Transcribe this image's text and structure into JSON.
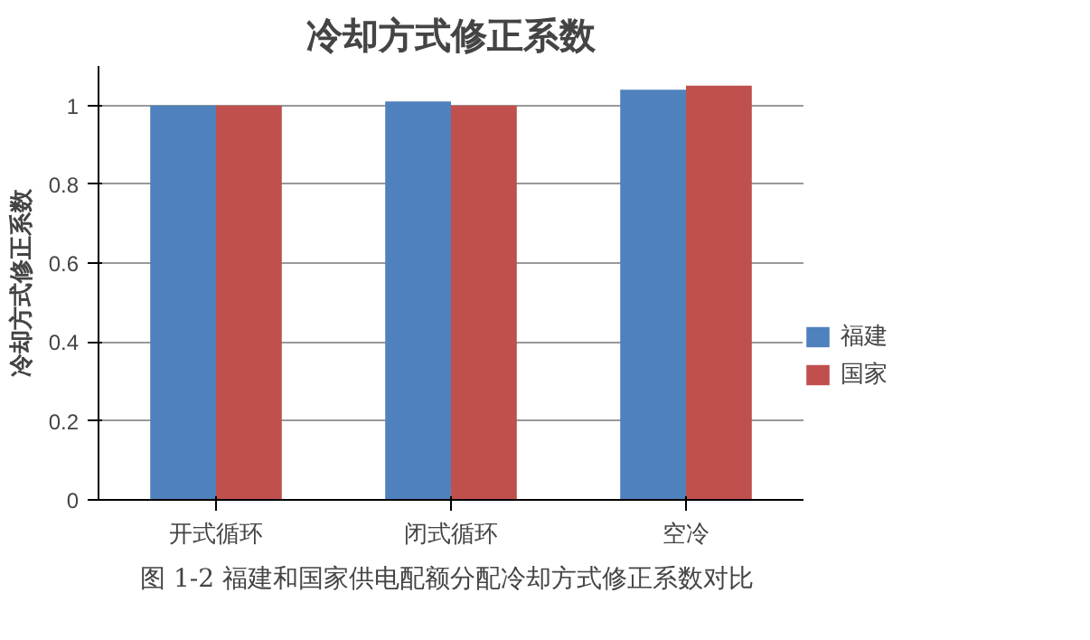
{
  "chart_data": {
    "type": "bar",
    "title": "冷却方式修正系数",
    "ylabel": "冷却方式修正系数",
    "categories": [
      "开式循环",
      "闭式循环",
      "空冷"
    ],
    "series": [
      {
        "name": "福建",
        "color": "#4f81bd",
        "values": [
          1,
          1.01,
          1.04
        ]
      },
      {
        "name": "国家",
        "color": "#c0504d",
        "values": [
          1,
          1,
          1.05
        ]
      }
    ],
    "ylim": [
      0,
      1.1
    ],
    "yticks": [
      0,
      0.2,
      0.4,
      0.6,
      0.8,
      1
    ],
    "grid": "y",
    "legend": "right",
    "annotations": [
      "图 1-2  福建和国家供电配额分配冷却方式修正系数对比"
    ]
  }
}
